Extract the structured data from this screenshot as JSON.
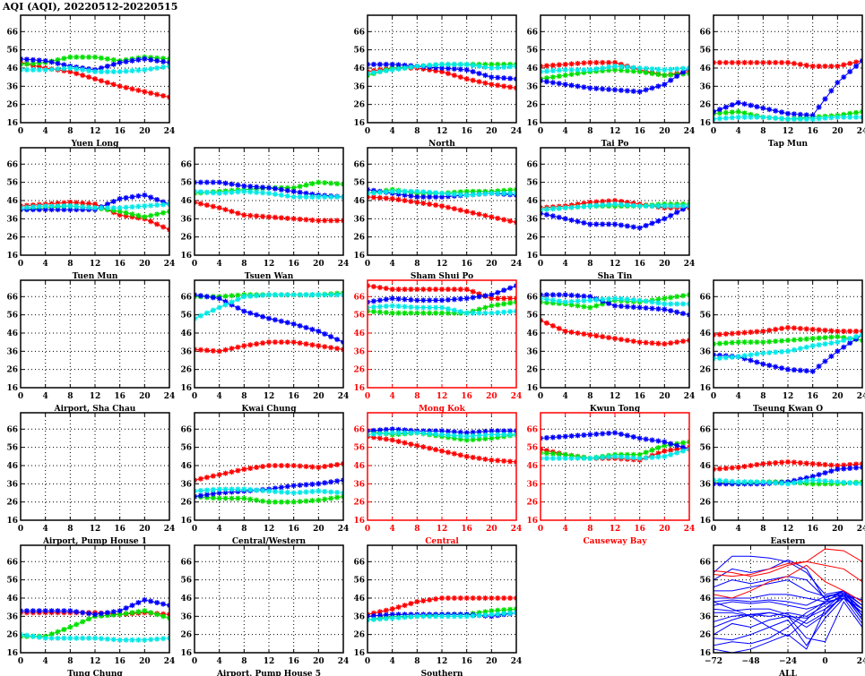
{
  "chart_data": {
    "type": "line",
    "title": "AQI (AQI), 20220512-20220515",
    "ylim": [
      16,
      75
    ],
    "yticks": [
      16,
      26,
      36,
      46,
      56,
      66
    ],
    "xticks": [
      0,
      4,
      8,
      12,
      16,
      20,
      24
    ],
    "grid": true,
    "series_colors": {
      "red": "#ff0000",
      "green": "#00e000",
      "blue": "#0000ff",
      "cyan": "#00e8e8"
    },
    "x": [
      0,
      4,
      8,
      12,
      16,
      20,
      24
    ],
    "panels": [
      {
        "name": "Yuen Long",
        "highlight": false,
        "series": {
          "red": [
            49,
            46,
            44,
            40,
            36,
            33,
            30
          ],
          "green": [
            48,
            49,
            52,
            52,
            50,
            52,
            51
          ],
          "blue": [
            51,
            50,
            47,
            45,
            49,
            51,
            49
          ],
          "cyan": [
            45,
            45,
            46,
            44,
            44,
            45,
            47
          ]
        }
      },
      {
        "name": "North",
        "highlight": false,
        "series": {
          "red": [
            44,
            46,
            46,
            44,
            40,
            37,
            35
          ],
          "green": [
            42,
            46,
            47,
            48,
            48,
            48,
            48
          ],
          "blue": [
            48,
            48,
            47,
            46,
            45,
            41,
            40
          ],
          "cyan": [
            43,
            45,
            47,
            48,
            48,
            46,
            47
          ]
        }
      },
      {
        "name": "Tai Po",
        "highlight": false,
        "series": {
          "red": [
            47,
            48,
            49,
            49,
            45,
            42,
            44
          ],
          "green": [
            40,
            42,
            44,
            45,
            44,
            42,
            43
          ],
          "blue": [
            39,
            37,
            35,
            34,
            33,
            37,
            46
          ],
          "cyan": [
            44,
            45,
            45,
            47,
            46,
            45,
            46
          ]
        }
      },
      {
        "name": "Tap Mun",
        "highlight": false,
        "series": {
          "red": [
            49,
            49,
            49,
            49,
            47,
            47,
            50
          ],
          "green": [
            21,
            22,
            19,
            18,
            19,
            20,
            22
          ],
          "blue": [
            22,
            27,
            24,
            21,
            20,
            38,
            50
          ],
          "cyan": [
            18,
            19,
            19,
            18,
            18,
            19,
            19
          ]
        }
      },
      {
        "name": "Tuen Mun",
        "highlight": false,
        "series": {
          "red": [
            43,
            44,
            45,
            44,
            38,
            36,
            30
          ],
          "green": [
            41,
            42,
            43,
            42,
            40,
            37,
            40
          ],
          "blue": [
            41,
            41,
            41,
            41,
            47,
            49,
            44
          ],
          "cyan": [
            42,
            43,
            43,
            42,
            42,
            43,
            44
          ]
        }
      },
      {
        "name": "Tsuen Wan",
        "highlight": false,
        "series": {
          "red": [
            45,
            42,
            38,
            37,
            36,
            35,
            35
          ],
          "green": [
            50,
            51,
            52,
            53,
            53,
            56,
            55
          ],
          "blue": [
            56,
            56,
            54,
            53,
            51,
            49,
            48
          ],
          "cyan": [
            51,
            50,
            51,
            50,
            48,
            48,
            48
          ]
        }
      },
      {
        "name": "Sham Shui Po",
        "highlight": false,
        "series": {
          "red": [
            48,
            47,
            45,
            43,
            40,
            37,
            34
          ],
          "green": [
            50,
            52,
            50,
            50,
            51,
            51,
            52
          ],
          "blue": [
            52,
            50,
            48,
            48,
            49,
            50,
            49
          ],
          "cyan": [
            50,
            51,
            51,
            50,
            49,
            50,
            50
          ]
        }
      },
      {
        "name": "Sha Tin",
        "highlight": false,
        "series": {
          "red": [
            42,
            43,
            45,
            46,
            44,
            42,
            42
          ],
          "green": [
            41,
            42,
            43,
            43,
            43,
            44,
            44
          ],
          "blue": [
            39,
            36,
            33,
            33,
            31,
            36,
            43
          ],
          "cyan": [
            41,
            42,
            43,
            44,
            43,
            43,
            43
          ]
        }
      },
      {
        "name": "Airport, Sha Chau",
        "highlight": false,
        "series": {}
      },
      {
        "name": "Kwai Chung",
        "highlight": false,
        "series": {
          "red": [
            37,
            36,
            39,
            41,
            41,
            39,
            37
          ],
          "green": [
            66,
            66,
            67,
            67,
            67,
            67,
            68
          ],
          "blue": [
            67,
            65,
            58,
            54,
            51,
            47,
            41
          ],
          "cyan": [
            54,
            60,
            66,
            67,
            67,
            67,
            67
          ]
        }
      },
      {
        "name": "Mong Kok",
        "highlight": true,
        "series": {
          "red": [
            72,
            70,
            70,
            70,
            70,
            65,
            65
          ],
          "green": [
            58,
            57,
            57,
            57,
            57,
            61,
            63
          ],
          "blue": [
            63,
            65,
            64,
            64,
            65,
            67,
            72
          ],
          "cyan": [
            60,
            61,
            60,
            60,
            57,
            57,
            58
          ]
        }
      },
      {
        "name": "Kwun Tong",
        "highlight": false,
        "series": {
          "red": [
            53,
            47,
            45,
            43,
            41,
            40,
            42
          ],
          "green": [
            63,
            62,
            60,
            64,
            63,
            65,
            67
          ],
          "blue": [
            67,
            67,
            66,
            61,
            60,
            59,
            56
          ],
          "cyan": [
            65,
            63,
            64,
            65,
            64,
            62,
            62
          ]
        }
      },
      {
        "name": "Tseung Kwan O",
        "highlight": false,
        "series": {
          "red": [
            45,
            46,
            47,
            49,
            48,
            47,
            47
          ],
          "green": [
            40,
            41,
            41,
            42,
            43,
            44,
            42
          ],
          "blue": [
            34,
            33,
            29,
            26,
            25,
            36,
            45
          ],
          "cyan": [
            32,
            33,
            35,
            36,
            39,
            41,
            45
          ]
        }
      },
      {
        "name": "Airport, Pump House 1",
        "highlight": false,
        "series": {}
      },
      {
        "name": "Central/Western",
        "highlight": false,
        "series": {
          "red": [
            38,
            41,
            44,
            46,
            46,
            45,
            47
          ],
          "green": [
            29,
            28,
            28,
            26,
            26,
            27,
            29
          ],
          "blue": [
            29,
            31,
            32,
            33,
            35,
            36,
            38
          ],
          "cyan": [
            32,
            33,
            33,
            32,
            31,
            32,
            31
          ]
        }
      },
      {
        "name": "Central",
        "highlight": true,
        "series": {
          "red": [
            62,
            60,
            57,
            54,
            51,
            49,
            48
          ],
          "green": [
            65,
            63,
            64,
            62,
            60,
            61,
            63
          ],
          "blue": [
            65,
            66,
            65,
            65,
            64,
            65,
            65
          ],
          "cyan": [
            63,
            64,
            64,
            63,
            62,
            63,
            63
          ]
        }
      },
      {
        "name": "Causeway Bay",
        "highlight": true,
        "series": {
          "red": [
            55,
            52,
            50,
            50,
            49,
            54,
            56
          ],
          "green": [
            53,
            52,
            50,
            52,
            52,
            57,
            59
          ],
          "blue": [
            61,
            62,
            63,
            64,
            61,
            59,
            55
          ],
          "cyan": [
            50,
            50,
            50,
            51,
            50,
            51,
            55
          ]
        }
      },
      {
        "name": "Eastern",
        "highlight": false,
        "series": {
          "red": [
            44,
            45,
            47,
            48,
            47,
            46,
            47
          ],
          "green": [
            37,
            36,
            37,
            37,
            36,
            36,
            37
          ],
          "blue": [
            36,
            36,
            36,
            37,
            40,
            44,
            45
          ],
          "cyan": [
            38,
            37,
            37,
            36,
            38,
            37,
            36
          ]
        }
      },
      {
        "name": "Tung Chung",
        "highlight": false,
        "series": {
          "red": [
            38,
            38,
            38,
            38,
            37,
            38,
            37
          ],
          "green": [
            25,
            25,
            30,
            36,
            37,
            39,
            35
          ],
          "blue": [
            39,
            39,
            39,
            37,
            39,
            45,
            42
          ],
          "cyan": [
            26,
            24,
            24,
            24,
            23,
            23,
            24
          ]
        }
      },
      {
        "name": "Airport, Pump House 5",
        "highlight": false,
        "series": {}
      },
      {
        "name": "Southern",
        "highlight": false,
        "series": {
          "red": [
            37,
            40,
            44,
            46,
            46,
            46,
            46
          ],
          "green": [
            34,
            36,
            36,
            37,
            37,
            39,
            40
          ],
          "blue": [
            36,
            37,
            37,
            37,
            37,
            36,
            38
          ],
          "cyan": [
            34,
            35,
            36,
            36,
            36,
            37,
            38
          ]
        }
      }
    ],
    "all_panel": {
      "name": "ALL",
      "x": [
        -72,
        -60,
        -48,
        -36,
        -24,
        -12,
        0,
        12,
        24
      ],
      "xticks": [
        -72,
        -48,
        -24,
        0,
        24
      ],
      "red_lines": [
        [
          61,
          60,
          58,
          60,
          64,
          66,
          73,
          72,
          66
        ],
        [
          59,
          58,
          59,
          62,
          65,
          66,
          64,
          62,
          55
        ],
        [
          48,
          46,
          50,
          55,
          58,
          64,
          55,
          50,
          44
        ]
      ],
      "blue_lines": [
        [
          60,
          69,
          69,
          68,
          66,
          60,
          48,
          50,
          42
        ],
        [
          56,
          62,
          60,
          62,
          67,
          62,
          45,
          48,
          40
        ],
        [
          52,
          56,
          54,
          56,
          58,
          56,
          46,
          50,
          44
        ],
        [
          50,
          50,
          52,
          54,
          56,
          50,
          47,
          49,
          40
        ],
        [
          46,
          46,
          46,
          48,
          48,
          46,
          44,
          50,
          36
        ],
        [
          44,
          45,
          44,
          45,
          44,
          42,
          47,
          48,
          34
        ],
        [
          42,
          44,
          43,
          44,
          42,
          40,
          43,
          47,
          38
        ],
        [
          40,
          39,
          40,
          40,
          37,
          32,
          38,
          48,
          45
        ],
        [
          38,
          38,
          36,
          38,
          36,
          35,
          40,
          46,
          32
        ],
        [
          33,
          36,
          37,
          38,
          36,
          30,
          37,
          48,
          36
        ],
        [
          30,
          34,
          37,
          36,
          38,
          36,
          42,
          48,
          34
        ],
        [
          26,
          32,
          30,
          34,
          36,
          24,
          22,
          44,
          30
        ],
        [
          24,
          23,
          26,
          30,
          34,
          20,
          35,
          46,
          40
        ],
        [
          20,
          22,
          21,
          24,
          30,
          38,
          44,
          50,
          36
        ],
        [
          18,
          16,
          18,
          22,
          26,
          18,
          40,
          49,
          42
        ],
        [
          44,
          40,
          36,
          30,
          25,
          34,
          44,
          46,
          38
        ]
      ]
    }
  }
}
